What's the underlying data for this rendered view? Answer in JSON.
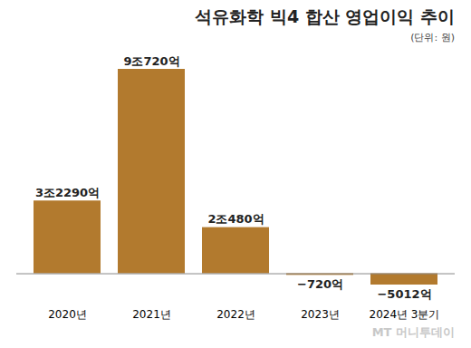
{
  "chart_data": {
    "type": "bar",
    "title": "석유화학 빅4 합산 영업이익 추이",
    "subtitle": "(단위: 원)",
    "source": "MT 머니투데이",
    "categories": [
      "2020년",
      "2021년",
      "2022년",
      "2023년",
      "2024년 3분기"
    ],
    "values": [
      32290,
      90720,
      20480,
      -720,
      -5012
    ],
    "value_labels": [
      "3조2290억",
      "9조720억",
      "2조480억",
      "−720억",
      "−5012억"
    ],
    "data_labels": true,
    "tick_labels": "x",
    "color": "#b27a2e"
  }
}
